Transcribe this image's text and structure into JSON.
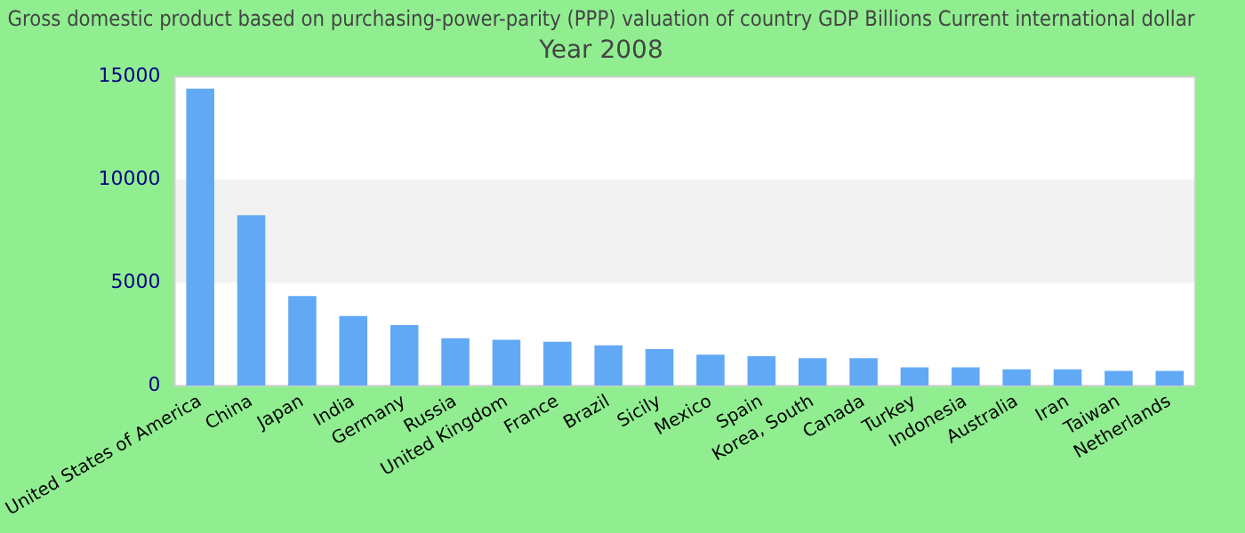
{
  "chart_data": {
    "type": "bar",
    "title": "Gross domestic product based on purchasing-power-parity (PPP) valuation of country GDP Billions Current international dollar",
    "subtitle": "Year 2008",
    "categories": [
      "United States of America",
      "China",
      "Japan",
      "India",
      "Germany",
      "Russia",
      "United Kingdom",
      "France",
      "Brazil",
      "Sicily",
      "Mexico",
      "Spain",
      "Korea, South",
      "Canada",
      "Turkey",
      "Indonesia",
      "Australia",
      "Iran",
      "Taiwan",
      "Netherlands"
    ],
    "values": [
      14420,
      8280,
      4360,
      3380,
      2940,
      2310,
      2230,
      2140,
      1960,
      1780,
      1510,
      1430,
      1340,
      1340,
      890,
      890,
      800,
      800,
      720,
      720
    ],
    "color": "#62a9f5",
    "ylim": [
      0,
      15000
    ],
    "yticks": [
      0,
      5000,
      10000,
      15000
    ],
    "bands": [
      {
        "axis": "y",
        "from": 5000,
        "to": 10000,
        "color": "#f2f2f2"
      }
    ],
    "grid": false,
    "legend": false
  }
}
